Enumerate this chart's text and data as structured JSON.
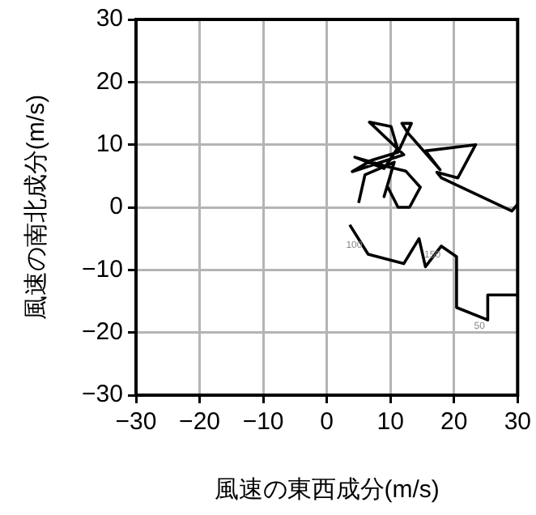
{
  "chart_data": {
    "type": "line",
    "xlabel": "風速の東西成分(m/s)",
    "ylabel": "風速の南北成分(m/s)",
    "xlim": [
      -30,
      30
    ],
    "ylim": [
      -30,
      30
    ],
    "xticks": [
      -30,
      -20,
      -10,
      0,
      10,
      20,
      30
    ],
    "yticks": [
      -30,
      -20,
      -10,
      0,
      10,
      20,
      30
    ],
    "grid": true,
    "legend": false,
    "marker": "none",
    "line_style": "solid",
    "series": [
      {
        "color": "#000000",
        "x": [
          30,
          29.1,
          18,
          17.3,
          20.6,
          23.4,
          15.5,
          17.8,
          12.8,
          11.8,
          13.3,
          11.2,
          7,
          4,
          12.1,
          6.7,
          10.1,
          11.1,
          9,
          4.4,
          9.5,
          12.4,
          14.7,
          13,
          11.2,
          9.5,
          9,
          10.6,
          6,
          5,
          null,
          3.6,
          6.5,
          12.1,
          14.5,
          15.5,
          18,
          20.4,
          20.4,
          25.3,
          25.3,
          30
        ],
        "values": [
          0.5,
          -0.6,
          4.7,
          5.6,
          4.7,
          10,
          9,
          6,
          11.8,
          13.4,
          13.4,
          8.8,
          7.5,
          5.7,
          8.4,
          13.6,
          12.9,
          9.4,
          6.2,
          8,
          6.5,
          5.8,
          3.2,
          0,
          0,
          3.4,
          1.7,
          7.2,
          5.2,
          0.7,
          null,
          -2.8,
          -7.5,
          -9,
          -5,
          -9.5,
          -6.2,
          -7.9,
          -16,
          -18,
          -14,
          -14
        ]
      }
    ],
    "annotations": [
      {
        "text": "50",
        "x": 24,
        "y": -19
      },
      {
        "text": "100",
        "x": 4.3,
        "y": -6
      },
      {
        "text": "150",
        "x": 16.6,
        "y": -7.6
      }
    ]
  }
}
